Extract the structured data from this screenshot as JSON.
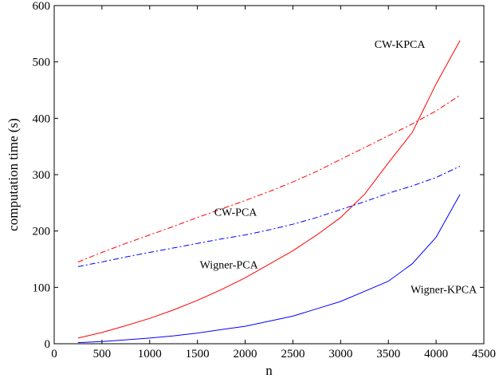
{
  "chart_data": {
    "type": "line",
    "title": "",
    "xlabel": "n",
    "ylabel": "computation time (s)",
    "xlim": [
      0,
      4500
    ],
    "ylim": [
      0,
      600
    ],
    "xticks": [
      0,
      500,
      1000,
      1500,
      2000,
      2500,
      3000,
      3500,
      4000,
      4500
    ],
    "yticks": [
      0,
      100,
      200,
      300,
      400,
      500,
      600
    ],
    "grid": false,
    "legend": "none (series labeled inline)",
    "series": [
      {
        "name": "CW-KPCA",
        "color": "#ff0000",
        "style": "solid",
        "x": [
          250,
          500,
          750,
          1000,
          1250,
          1500,
          1750,
          2000,
          2250,
          2500,
          2750,
          3000,
          3250,
          3500,
          3750,
          4000,
          4250
        ],
        "y": [
          10,
          20,
          32,
          45,
          60,
          77,
          96,
          117,
          141,
          165,
          193,
          224,
          265,
          321,
          375,
          461,
          538
        ]
      },
      {
        "name": "CW-PCA",
        "color": "#ff0000",
        "style": "dashdot",
        "x": [
          250,
          500,
          750,
          1000,
          1250,
          1500,
          1750,
          2000,
          2250,
          2500,
          2750,
          3000,
          3250,
          3500,
          3750,
          4000,
          4250
        ],
        "y": [
          145,
          162,
          178,
          193,
          208,
          224,
          239,
          254,
          270,
          287,
          306,
          327,
          348,
          369,
          390,
          413,
          441
        ]
      },
      {
        "name": "Wigner-PCA",
        "color": "#0000ff",
        "style": "dashdot",
        "x": [
          250,
          500,
          750,
          1000,
          1250,
          1500,
          1750,
          2000,
          2250,
          2500,
          2750,
          3000,
          3250,
          3500,
          3750,
          4000,
          4250
        ],
        "y": [
          137,
          145,
          154,
          162,
          170,
          178,
          186,
          193,
          202,
          212,
          224,
          238,
          252,
          267,
          280,
          295,
          315
        ]
      },
      {
        "name": "Wigner-KPCA",
        "color": "#0000ff",
        "style": "solid",
        "x": [
          250,
          500,
          750,
          1000,
          1250,
          1500,
          1750,
          2000,
          2250,
          2500,
          2750,
          3000,
          3250,
          3500,
          3750,
          4000,
          4250
        ],
        "y": [
          2,
          4,
          7,
          10,
          14,
          19,
          25,
          31,
          40,
          49,
          62,
          75,
          93,
          111,
          142,
          189,
          265
        ]
      }
    ],
    "annotations": [
      {
        "text": "CW-KPCA",
        "x": 3620,
        "y": 525
      },
      {
        "text": "CW-PCA",
        "x": 1900,
        "y": 227
      },
      {
        "text": "Wigner-PCA",
        "x": 1830,
        "y": 134
      },
      {
        "text": "Wigner-KPCA",
        "x": 4080,
        "y": 90
      }
    ]
  }
}
